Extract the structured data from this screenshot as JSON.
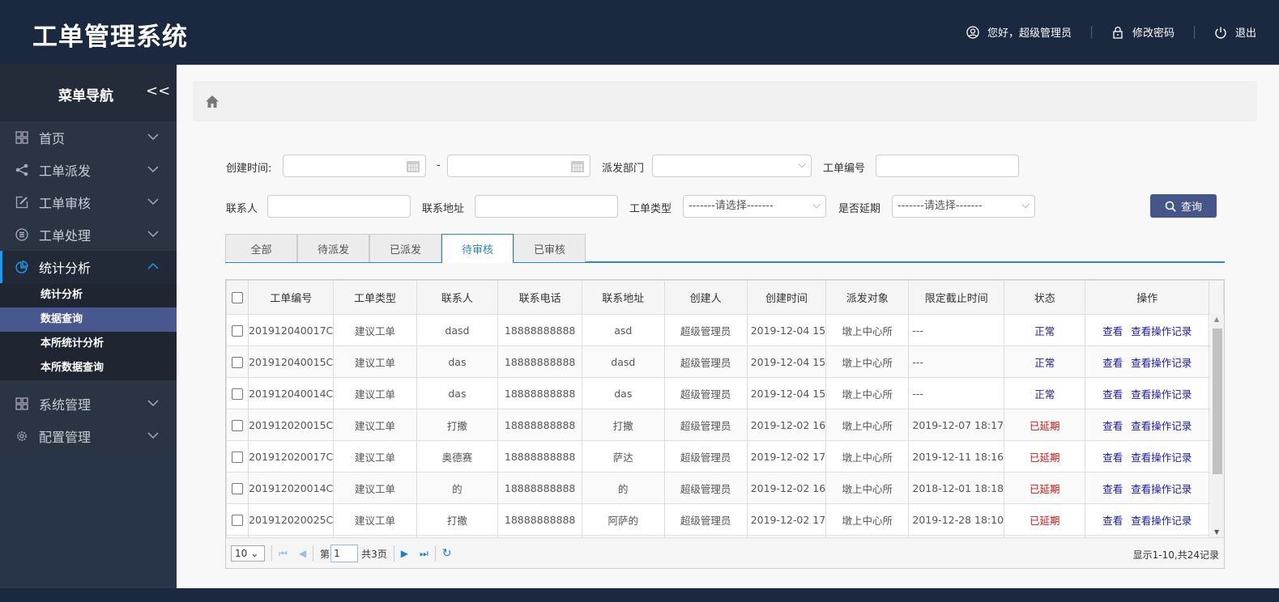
{
  "header": {
    "title": "工单管理系统",
    "greeting": "您好，超级管理员",
    "change_password": "修改密码",
    "logout": "退出"
  },
  "sidebar": {
    "title": "菜单导航",
    "collapse": "<<",
    "items": [
      {
        "label": "首页",
        "icon": "grid-icon"
      },
      {
        "label": "工单派发",
        "icon": "share-icon"
      },
      {
        "label": "工单审核",
        "icon": "edit-icon"
      },
      {
        "label": "工单处理",
        "icon": "database-icon"
      },
      {
        "label": "统计分析",
        "icon": "pie-chart-icon",
        "expanded": true
      }
    ],
    "sub": [
      {
        "label": "统计分析"
      },
      {
        "label": "数据查询",
        "selected": true
      },
      {
        "label": "本所统计分析"
      },
      {
        "label": "本所数据查询"
      }
    ],
    "items2": [
      {
        "label": "系统管理",
        "icon": "grid-icon"
      },
      {
        "label": "配置管理",
        "icon": "gear-icon"
      }
    ]
  },
  "filters": {
    "created_time": "创建时间:",
    "dash": "-",
    "dept": "派发部门",
    "order_no": "工单编号",
    "contact": "联系人",
    "address": "联系地址",
    "type": "工单类型",
    "type_value": "-------请选择-------",
    "delayed": "是否延期",
    "delayed_value": "-------请选择-------",
    "search": "查询"
  },
  "tabs": [
    "全部",
    "待派发",
    "已派发",
    "待审核",
    "已审核"
  ],
  "active_tab": "待审核",
  "table": {
    "headers": [
      "工单编号",
      "工单类型",
      "联系人",
      "联系电话",
      "联系地址",
      "创建人",
      "创建时间",
      "派发对象",
      "限定截止时间",
      "状态",
      "操作"
    ],
    "rows": [
      [
        "201912040017C",
        "建议工单",
        "dasd",
        "18888888888",
        "asd",
        "超级管理员",
        "2019-12-04 15",
        "墩上中心所",
        "---",
        "正常"
      ],
      [
        "201912040015C",
        "建议工单",
        "das",
        "18888888888",
        "dasd",
        "超级管理员",
        "2019-12-04 15",
        "墩上中心所",
        "---",
        "正常"
      ],
      [
        "201912040014C",
        "建议工单",
        "das",
        "18888888888",
        "das",
        "超级管理员",
        "2019-12-04 15",
        "墩上中心所",
        "---",
        "正常"
      ],
      [
        "201912020015C",
        "建议工单",
        "打撒",
        "18888888888",
        "打撒",
        "超级管理员",
        "2019-12-02 16",
        "墩上中心所",
        "2019-12-07 18:17",
        "已延期"
      ],
      [
        "201912020017C",
        "建议工单",
        "奥德赛",
        "18888888888",
        "萨达",
        "超级管理员",
        "2019-12-02 17",
        "墩上中心所",
        "2019-12-11 18:16",
        "已延期"
      ],
      [
        "201912020014C",
        "建议工单",
        "的",
        "18888888888",
        "的",
        "超级管理员",
        "2019-12-02 16",
        "墩上中心所",
        "2018-12-01 18:18",
        "已延期"
      ],
      [
        "201912020025C",
        "建议工单",
        "打撒",
        "18888888888",
        "阿萨的",
        "超级管理员",
        "2019-12-02 17",
        "墩上中心所",
        "2019-12-28 18:10",
        "已延期"
      ]
    ],
    "actions": [
      "查看",
      "查看操作记录"
    ]
  },
  "pager": {
    "page_size": "10",
    "page_prefix": "第",
    "page": "1",
    "total_pages": "共3页",
    "info": "显示1-10,共24记录"
  },
  "colors": {
    "header": "#1a2840",
    "accent": "#2b86c2",
    "normal": "#1a1ac4",
    "delayed": "#e01010",
    "selected_menu": "#48588f"
  }
}
